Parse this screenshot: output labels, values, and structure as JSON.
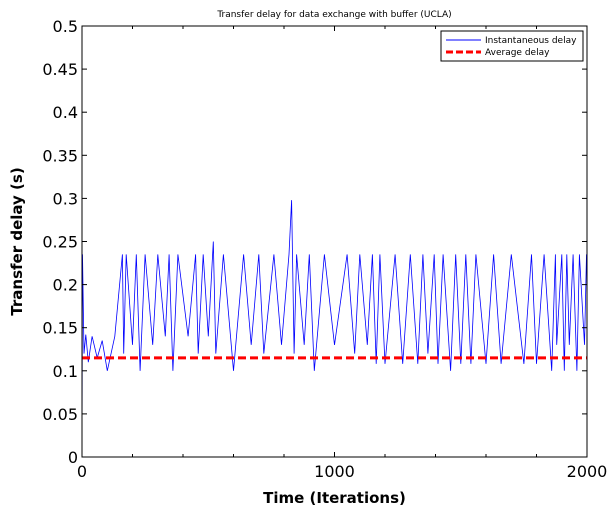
{
  "chart_data": {
    "type": "line",
    "title": "Transfer delay for data exchange with buffer (UCLA)",
    "xlabel": "Time (Iterations)",
    "ylabel": "Transfer delay (s)",
    "xlim": [
      0,
      2000
    ],
    "ylim": [
      0,
      0.5
    ],
    "x_ticks": [
      "0",
      "1000",
      "2000"
    ],
    "y_ticks": [
      "0",
      "0.05",
      "0.1",
      "0.15",
      "0.2",
      "0.25",
      "0.3",
      "0.35",
      "0.4",
      "0.45",
      "0.5"
    ],
    "grid": false,
    "legend_position": "top-right",
    "series": [
      {
        "name": "Instantaneous delay",
        "color": "#0000ff",
        "style": "solid",
        "x": [
          0,
          2,
          8,
          15,
          25,
          40,
          60,
          80,
          100,
          130,
          160,
          165,
          175,
          200,
          215,
          230,
          250,
          280,
          300,
          330,
          345,
          360,
          380,
          420,
          450,
          460,
          480,
          500,
          520,
          530,
          560,
          600,
          640,
          670,
          700,
          720,
          760,
          790,
          820,
          830,
          840,
          850,
          880,
          900,
          920,
          960,
          1000,
          1050,
          1080,
          1100,
          1130,
          1150,
          1165,
          1180,
          1200,
          1240,
          1270,
          1300,
          1330,
          1350,
          1370,
          1395,
          1410,
          1430,
          1460,
          1480,
          1500,
          1520,
          1540,
          1560,
          1600,
          1630,
          1660,
          1700,
          1750,
          1780,
          1800,
          1830,
          1860,
          1875,
          1880,
          1900,
          1910,
          1920,
          1930,
          1945,
          1960,
          1970,
          1990,
          1998
        ],
        "y": [
          0.0,
          0.235,
          0.12,
          0.142,
          0.11,
          0.14,
          0.115,
          0.135,
          0.1,
          0.14,
          0.235,
          0.12,
          0.235,
          0.13,
          0.235,
          0.1,
          0.235,
          0.13,
          0.235,
          0.14,
          0.235,
          0.1,
          0.235,
          0.14,
          0.235,
          0.12,
          0.235,
          0.14,
          0.25,
          0.12,
          0.235,
          0.1,
          0.235,
          0.13,
          0.235,
          0.12,
          0.235,
          0.13,
          0.235,
          0.298,
          0.12,
          0.235,
          0.13,
          0.235,
          0.1,
          0.235,
          0.13,
          0.235,
          0.12,
          0.235,
          0.13,
          0.235,
          0.108,
          0.235,
          0.108,
          0.235,
          0.108,
          0.235,
          0.108,
          0.235,
          0.12,
          0.235,
          0.108,
          0.235,
          0.1,
          0.235,
          0.108,
          0.235,
          0.108,
          0.235,
          0.108,
          0.235,
          0.108,
          0.235,
          0.108,
          0.235,
          0.108,
          0.235,
          0.1,
          0.235,
          0.13,
          0.235,
          0.1,
          0.235,
          0.13,
          0.235,
          0.1,
          0.235,
          0.13,
          0.235
        ]
      },
      {
        "name": "Average delay",
        "color": "#ff0000",
        "style": "dashed",
        "x": [
          0,
          2000
        ],
        "y": [
          0.115,
          0.115
        ]
      }
    ]
  }
}
